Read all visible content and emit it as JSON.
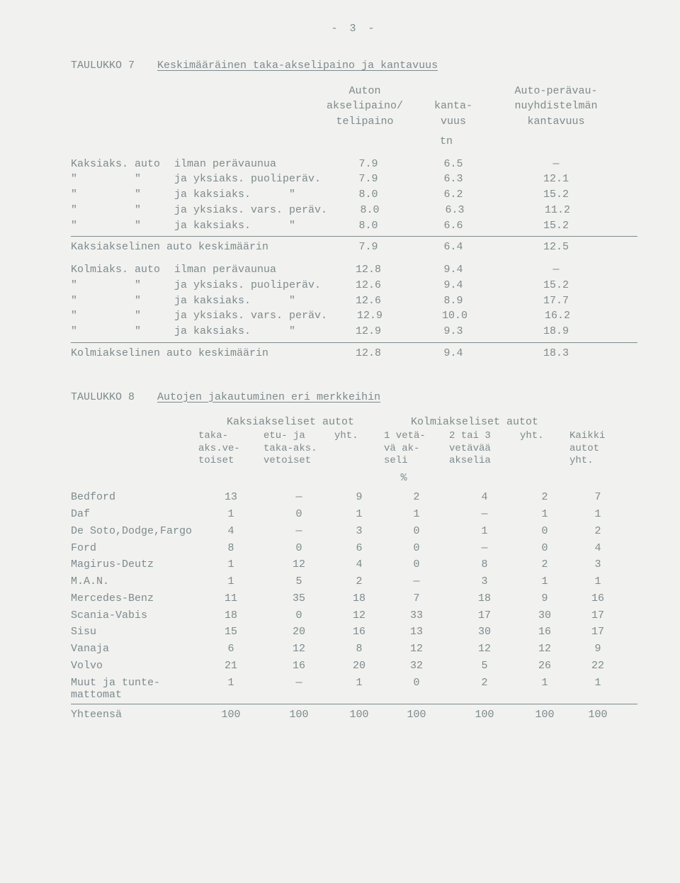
{
  "page_number": "- 3 -",
  "ditto_mark": "\"",
  "dash": "—",
  "table7": {
    "label": "TAULUKKO 7",
    "title": "Keskimääräinen taka-akselipaino ja kantavuus",
    "headers": {
      "col1_line1": "Auton",
      "col1_line2": "akselipaino/",
      "col1_line3": "telipaino",
      "col2_line1": "kanta-",
      "col2_line2": "vuus",
      "col3_line1": "Auto-perävau-",
      "col3_line2": "nuyhdistelmän",
      "col3_line3": "kantavuus",
      "unit": "tn"
    },
    "rows_a": [
      {
        "l1": "Kaksiaks.",
        "l2": "auto",
        "l3": "ilman perävaunua",
        "c1": "7.9",
        "c2": "6.5",
        "c3": "—"
      },
      {
        "l1": "\"",
        "l2": "\"",
        "l3": "ja yksiaks. puoliperäv.",
        "c1": "7.9",
        "c2": "6.3",
        "c3": "12.1"
      },
      {
        "l1": "\"",
        "l2": "\"",
        "l3": "ja kaksiaks.      \"",
        "c1": "8.0",
        "c2": "6.2",
        "c3": "15.2"
      },
      {
        "l1": "\"",
        "l2": "\"",
        "l3": "ja yksiaks. vars. peräv.",
        "c1": "8.0",
        "c2": "6.3",
        "c3": "11.2"
      },
      {
        "l1": "\"",
        "l2": "\"",
        "l3": "ja kaksiaks.      \"",
        "c1": "8.0",
        "c2": "6.6",
        "c3": "15.2"
      }
    ],
    "summary_a": {
      "label": "Kaksiakselinen auto keskimäärin",
      "c1": "7.9",
      "c2": "6.4",
      "c3": "12.5"
    },
    "rows_b": [
      {
        "l1": "Kolmiaks.",
        "l2": "auto",
        "l3": "ilman perävaunua",
        "c1": "12.8",
        "c2": "9.4",
        "c3": "—"
      },
      {
        "l1": "\"",
        "l2": "\"",
        "l3": "ja yksiaks. puoliperäv.",
        "c1": "12.6",
        "c2": "9.4",
        "c3": "15.2"
      },
      {
        "l1": "\"",
        "l2": "\"",
        "l3": "ja kaksiaks.      \"",
        "c1": "12.6",
        "c2": "8.9",
        "c3": "17.7"
      },
      {
        "l1": "\"",
        "l2": "\"",
        "l3": "ja yksiaks. vars. peräv.",
        "c1": "12.9",
        "c2": "10.0",
        "c3": "16.2"
      },
      {
        "l1": "\"",
        "l2": "\"",
        "l3": "ja kaksiaks.      \"",
        "c1": "12.9",
        "c2": "9.3",
        "c3": "18.9"
      }
    ],
    "summary_b": {
      "label": "Kolmiakselinen auto keskimäärin",
      "c1": "12.8",
      "c2": "9.4",
      "c3": "18.3"
    }
  },
  "table8": {
    "label": "TAULUKKO 8",
    "title": "Autojen jakautuminen eri merkkeihin",
    "group1": "Kaksiakseliset autot",
    "group2": "Kolmiakseliset autot",
    "headers": {
      "a": "taka-\naks.ve-\ntoiset",
      "b": "etu- ja\ntaka-aks.\nvetoiset",
      "c": "yht.",
      "d": "1 vetä-\nvä ak-\nseli",
      "e": "2 tai 3\nvetävää\nakselia",
      "f": "yht.",
      "g": "Kaikki\nautot\nyht."
    },
    "pct": "%",
    "rows": [
      {
        "name": "Bedford",
        "a": "13",
        "b": "—",
        "c": "9",
        "d": "2",
        "e": "4",
        "f": "2",
        "g": "7"
      },
      {
        "name": "Daf",
        "a": "1",
        "b": "0",
        "c": "1",
        "d": "1",
        "e": "—",
        "f": "1",
        "g": "1"
      },
      {
        "name": "De Soto,Dodge,Fargo",
        "a": "4",
        "b": "—",
        "c": "3",
        "d": "0",
        "e": "1",
        "f": "0",
        "g": "2"
      },
      {
        "name": "Ford",
        "a": "8",
        "b": "0",
        "c": "6",
        "d": "0",
        "e": "—",
        "f": "0",
        "g": "4"
      },
      {
        "name": "Magirus-Deutz",
        "a": "1",
        "b": "12",
        "c": "4",
        "d": "0",
        "e": "8",
        "f": "2",
        "g": "3"
      },
      {
        "name": "M.A.N.",
        "a": "1",
        "b": "5",
        "c": "2",
        "d": "—",
        "e": "3",
        "f": "1",
        "g": "1"
      },
      {
        "name": "Mercedes-Benz",
        "a": "11",
        "b": "35",
        "c": "18",
        "d": "7",
        "e": "18",
        "f": "9",
        "g": "16"
      },
      {
        "name": "Scania-Vabis",
        "a": "18",
        "b": "0",
        "c": "12",
        "d": "33",
        "e": "17",
        "f": "30",
        "g": "17"
      },
      {
        "name": "Sisu",
        "a": "15",
        "b": "20",
        "c": "16",
        "d": "13",
        "e": "30",
        "f": "16",
        "g": "17"
      },
      {
        "name": "Vanaja",
        "a": "6",
        "b": "12",
        "c": "8",
        "d": "12",
        "e": "12",
        "f": "12",
        "g": "9"
      },
      {
        "name": "Volvo",
        "a": "21",
        "b": "16",
        "c": "20",
        "d": "32",
        "e": "5",
        "f": "26",
        "g": "22"
      },
      {
        "name": "Muut ja tunte-\nmattomat",
        "a": "1",
        "b": "—",
        "c": "1",
        "d": "0",
        "e": "2",
        "f": "1",
        "g": "1"
      }
    ],
    "total": {
      "name": "Yhteensä",
      "a": "100",
      "b": "100",
      "c": "100",
      "d": "100",
      "e": "100",
      "f": "100",
      "g": "100"
    }
  }
}
